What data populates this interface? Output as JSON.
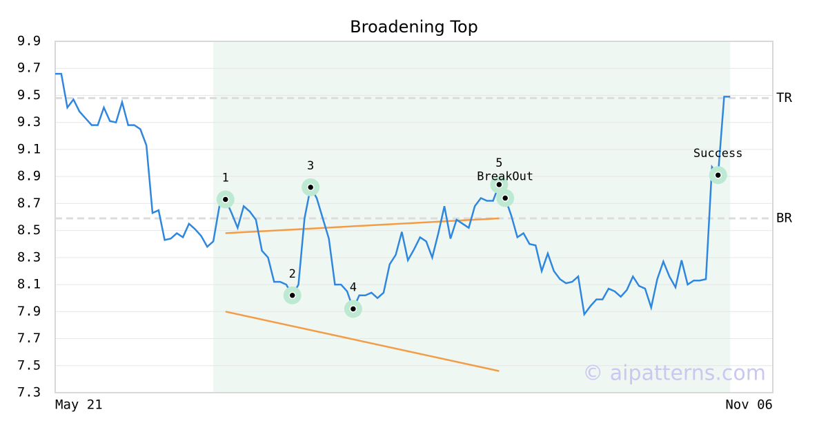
{
  "chart_data": {
    "type": "line",
    "title": "Broadening Top",
    "categories": [
      "May 21",
      null,
      null,
      null,
      null,
      null,
      null,
      null,
      null,
      null,
      null,
      null,
      null,
      null,
      null,
      null,
      null,
      null,
      null,
      null,
      null,
      null,
      null,
      null,
      null,
      null,
      null,
      null,
      null,
      null,
      null,
      null,
      null,
      null,
      null,
      null,
      null,
      null,
      null,
      null,
      null,
      null,
      null,
      null,
      null,
      null,
      null,
      null,
      null,
      null,
      null,
      null,
      null,
      null,
      null,
      null,
      null,
      null,
      null,
      null,
      null,
      null,
      null,
      null,
      null,
      null,
      null,
      null,
      null,
      null,
      null,
      null,
      null,
      null,
      null,
      null,
      null,
      null,
      null,
      null,
      null,
      null,
      null,
      null,
      null,
      null,
      null,
      null,
      null,
      null,
      null,
      null,
      null,
      null,
      null,
      null,
      null,
      null,
      null,
      null,
      null,
      null,
      null,
      null,
      null,
      null,
      null,
      null,
      null,
      null,
      null,
      null,
      null,
      null,
      null,
      null,
      null,
      null,
      "Nov 06"
    ],
    "series": [
      {
        "color": "#2e86de",
        "values": [
          9.66,
          9.66,
          9.41,
          9.47,
          9.38,
          9.33,
          9.28,
          9.28,
          9.41,
          9.31,
          9.3,
          9.45,
          9.28,
          9.28,
          9.25,
          9.13,
          8.63,
          8.65,
          8.43,
          8.44,
          8.48,
          8.45,
          8.55,
          8.51,
          8.46,
          8.38,
          8.42,
          8.68,
          8.73,
          8.63,
          8.52,
          8.68,
          8.64,
          8.58,
          8.35,
          8.3,
          8.12,
          8.12,
          8.1,
          8.02,
          8.1,
          8.59,
          8.82,
          8.74,
          8.59,
          8.44,
          8.1,
          8.1,
          8.05,
          7.92,
          8.02,
          8.02,
          8.04,
          8.0,
          8.04,
          8.25,
          8.32,
          8.49,
          8.28,
          8.36,
          8.45,
          8.42,
          8.3,
          8.48,
          8.68,
          8.44,
          8.58,
          8.55,
          8.52,
          8.68,
          8.74,
          8.72,
          8.72,
          8.84,
          8.74,
          8.61,
          8.45,
          8.48,
          8.4,
          8.39,
          8.2,
          8.33,
          8.2,
          8.14,
          8.11,
          8.12,
          8.16,
          7.88,
          7.94,
          7.99,
          7.99,
          8.07,
          8.05,
          8.01,
          8.06,
          8.16,
          8.09,
          8.07,
          7.93,
          8.14,
          8.27,
          8.16,
          8.08,
          8.28,
          8.1,
          8.13,
          8.13,
          8.14,
          8.97,
          8.91,
          9.49,
          9.49,
          null,
          null,
          null,
          null,
          null,
          null,
          null
        ]
      }
    ],
    "ylim": [
      7.3,
      9.9
    ],
    "yticks": [
      7.3,
      7.5,
      7.7,
      7.9,
      8.1,
      8.3,
      8.5,
      8.7,
      8.9,
      9.1,
      9.3,
      9.5,
      9.7,
      9.9
    ],
    "grid": true,
    "highlight": [
      26,
      111
    ],
    "levels": [
      {
        "label": "TR",
        "value": 9.48
      },
      {
        "label": "BR",
        "value": 8.59
      }
    ],
    "trendlines": [
      {
        "color": "#f39c45",
        "x": [
          28,
          73
        ],
        "values": [
          8.48,
          8.59
        ]
      },
      {
        "color": "#f39c45",
        "x": [
          28,
          73
        ],
        "values": [
          7.9,
          7.46
        ]
      }
    ],
    "annotations": [
      {
        "text": "1",
        "at": 28
      },
      {
        "text": "2",
        "at": 39
      },
      {
        "text": "3",
        "at": 42
      },
      {
        "text": "4",
        "at": 49
      },
      {
        "text": "5",
        "at": 73
      },
      {
        "text": "BreakOut",
        "at": 74
      },
      {
        "text": "Success",
        "at": 109
      }
    ],
    "watermark": "© aipatterns.com"
  }
}
